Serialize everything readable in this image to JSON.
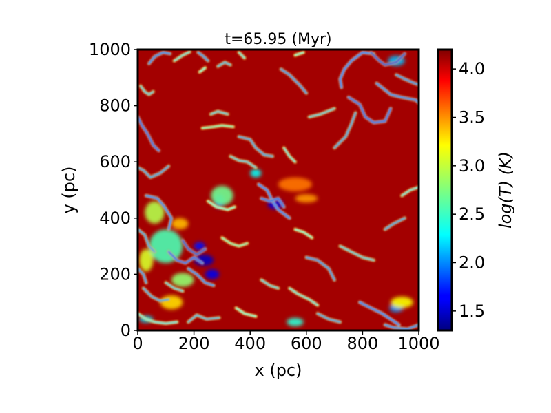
{
  "chart_data": {
    "type": "heatmap",
    "title": "t=65.95 (Myr)",
    "xlabel": "x (pc)",
    "ylabel": "y (pc)",
    "xlim": [
      0,
      1000
    ],
    "ylim": [
      0,
      1000
    ],
    "xticks": [
      0,
      200,
      400,
      600,
      800,
      1000
    ],
    "yticks": [
      0,
      200,
      400,
      600,
      800,
      1000
    ],
    "colorbar": {
      "label": "log(T) (K)",
      "range": [
        1.3,
        4.2
      ],
      "ticks": [
        1.5,
        2.0,
        2.5,
        3.0,
        3.5,
        4.0
      ],
      "colormap": "jet"
    },
    "background_value": 4.1,
    "filaments": [
      {
        "value": 1.6,
        "points": [
          [
            0,
            760
          ],
          [
            15,
            730
          ],
          [
            35,
            700
          ],
          [
            55,
            660
          ],
          [
            75,
            640
          ]
        ]
      },
      {
        "value": 2.2,
        "points": [
          [
            10,
            870
          ],
          [
            25,
            850
          ],
          [
            40,
            840
          ],
          [
            55,
            850
          ]
        ]
      },
      {
        "value": 2.0,
        "points": [
          [
            0,
            580
          ],
          [
            20,
            570
          ],
          [
            45,
            545
          ],
          [
            80,
            560
          ],
          [
            110,
            585
          ]
        ]
      },
      {
        "value": 1.8,
        "points": [
          [
            40,
            950
          ],
          [
            60,
            975
          ],
          [
            90,
            990
          ],
          [
            115,
            985
          ]
        ]
      },
      {
        "value": 2.3,
        "points": [
          [
            130,
            960
          ],
          [
            160,
            980
          ],
          [
            185,
            992
          ]
        ]
      },
      {
        "value": 1.9,
        "points": [
          [
            215,
            990
          ],
          [
            235,
            975
          ],
          [
            250,
            960
          ]
        ]
      },
      {
        "value": 2.4,
        "points": [
          [
            220,
            920
          ],
          [
            240,
            935
          ]
        ]
      },
      {
        "value": 2.1,
        "points": [
          [
            285,
            940
          ],
          [
            310,
            955
          ],
          [
            330,
            945
          ]
        ]
      },
      {
        "value": 2.3,
        "points": [
          [
            360,
            990
          ],
          [
            380,
            970
          ]
        ]
      },
      {
        "value": 1.9,
        "points": [
          [
            510,
            930
          ],
          [
            540,
            910
          ],
          [
            575,
            875
          ],
          [
            600,
            845
          ]
        ]
      },
      {
        "value": 2.4,
        "points": [
          [
            560,
            980
          ],
          [
            590,
            990
          ]
        ]
      },
      {
        "value": 1.7,
        "points": [
          [
            725,
            865
          ],
          [
            720,
            895
          ],
          [
            735,
            930
          ],
          [
            760,
            960
          ],
          [
            800,
            990
          ],
          [
            840,
            985
          ]
        ]
      },
      {
        "value": 1.5,
        "points": [
          [
            830,
            990
          ],
          [
            860,
            960
          ],
          [
            880,
            945
          ],
          [
            920,
            955
          ],
          [
            950,
            985
          ]
        ]
      },
      {
        "value": 1.8,
        "points": [
          [
            850,
            880
          ],
          [
            875,
            860
          ],
          [
            900,
            840
          ],
          [
            940,
            830
          ],
          [
            990,
            820
          ],
          [
            1000,
            810
          ]
        ]
      },
      {
        "value": 1.6,
        "points": [
          [
            750,
            830
          ],
          [
            790,
            805
          ],
          [
            810,
            760
          ],
          [
            840,
            740
          ],
          [
            880,
            745
          ],
          [
            900,
            790
          ]
        ]
      },
      {
        "value": 1.9,
        "points": [
          [
            920,
            910
          ],
          [
            950,
            895
          ],
          [
            985,
            880
          ],
          [
            1000,
            875
          ]
        ]
      },
      {
        "value": 2.0,
        "points": [
          [
            700,
            650
          ],
          [
            740,
            690
          ],
          [
            760,
            735
          ],
          [
            775,
            775
          ]
        ]
      },
      {
        "value": 2.2,
        "points": [
          [
            610,
            760
          ],
          [
            650,
            770
          ],
          [
            700,
            790
          ]
        ]
      },
      {
        "value": 2.5,
        "points": [
          [
            230,
            720
          ],
          [
            270,
            725
          ],
          [
            300,
            730
          ],
          [
            340,
            725
          ]
        ]
      },
      {
        "value": 2.2,
        "points": [
          [
            260,
            770
          ],
          [
            285,
            780
          ],
          [
            320,
            770
          ]
        ]
      },
      {
        "value": 2.0,
        "points": [
          [
            360,
            690
          ],
          [
            400,
            680
          ],
          [
            420,
            650
          ],
          [
            450,
            625
          ],
          [
            480,
            620
          ]
        ]
      },
      {
        "value": 2.3,
        "points": [
          [
            520,
            650
          ],
          [
            540,
            620
          ],
          [
            560,
            600
          ]
        ]
      },
      {
        "value": 1.7,
        "points": [
          [
            430,
            520
          ],
          [
            460,
            500
          ],
          [
            480,
            460
          ],
          [
            500,
            430
          ],
          [
            540,
            400
          ]
        ]
      },
      {
        "value": 1.6,
        "points": [
          [
            440,
            470
          ],
          [
            470,
            460
          ],
          [
            500,
            470
          ],
          [
            520,
            440
          ]
        ]
      },
      {
        "value": 2.2,
        "points": [
          [
            330,
            620
          ],
          [
            360,
            605
          ],
          [
            390,
            600
          ],
          [
            420,
            580
          ]
        ]
      },
      {
        "value": 2.4,
        "points": [
          [
            250,
            460
          ],
          [
            280,
            440
          ],
          [
            320,
            430
          ],
          [
            345,
            440
          ]
        ]
      },
      {
        "value": 1.8,
        "points": [
          [
            30,
            480
          ],
          [
            70,
            470
          ],
          [
            95,
            440
          ],
          [
            120,
            400
          ],
          [
            110,
            360
          ]
        ]
      },
      {
        "value": 2.0,
        "points": [
          [
            0,
            360
          ],
          [
            25,
            340
          ],
          [
            40,
            300
          ],
          [
            60,
            280
          ]
        ]
      },
      {
        "value": 1.6,
        "points": [
          [
            110,
            280
          ],
          [
            140,
            250
          ],
          [
            170,
            240
          ],
          [
            200,
            260
          ],
          [
            230,
            240
          ]
        ]
      },
      {
        "value": 1.5,
        "points": [
          [
            160,
            320
          ],
          [
            180,
            290
          ],
          [
            210,
            270
          ],
          [
            240,
            290
          ]
        ]
      },
      {
        "value": 1.8,
        "points": [
          [
            180,
            220
          ],
          [
            210,
            200
          ],
          [
            240,
            170
          ],
          [
            270,
            160
          ]
        ]
      },
      {
        "value": 2.0,
        "points": [
          [
            20,
            150
          ],
          [
            50,
            120
          ],
          [
            80,
            105
          ],
          [
            110,
            110
          ]
        ]
      },
      {
        "value": 2.3,
        "points": [
          [
            0,
            60
          ],
          [
            30,
            40
          ],
          [
            60,
            30
          ],
          [
            100,
            25
          ],
          [
            140,
            30
          ]
        ]
      },
      {
        "value": 2.1,
        "points": [
          [
            180,
            30
          ],
          [
            210,
            55
          ],
          [
            245,
            40
          ],
          [
            290,
            45
          ]
        ]
      },
      {
        "value": 2.4,
        "points": [
          [
            350,
            80
          ],
          [
            380,
            60
          ],
          [
            420,
            50
          ]
        ]
      },
      {
        "value": 1.9,
        "points": [
          [
            600,
            260
          ],
          [
            640,
            250
          ],
          [
            680,
            220
          ],
          [
            700,
            180
          ]
        ]
      },
      {
        "value": 2.2,
        "points": [
          [
            720,
            300
          ],
          [
            760,
            280
          ],
          [
            800,
            260
          ],
          [
            840,
            250
          ]
        ]
      },
      {
        "value": 1.7,
        "points": [
          [
            790,
            100
          ],
          [
            830,
            80
          ],
          [
            870,
            60
          ],
          [
            900,
            40
          ],
          [
            930,
            20
          ]
        ]
      },
      {
        "value": 1.8,
        "points": [
          [
            880,
            20
          ],
          [
            910,
            10
          ],
          [
            960,
            5
          ],
          [
            1000,
            20
          ]
        ]
      },
      {
        "value": 2.3,
        "points": [
          [
            540,
            150
          ],
          [
            570,
            130
          ],
          [
            610,
            110
          ],
          [
            640,
            90
          ]
        ]
      },
      {
        "value": 2.0,
        "points": [
          [
            640,
            60
          ],
          [
            680,
            40
          ],
          [
            720,
            30
          ]
        ]
      },
      {
        "value": 2.5,
        "points": [
          [
            300,
            330
          ],
          [
            330,
            310
          ],
          [
            360,
            300
          ],
          [
            390,
            310
          ]
        ]
      },
      {
        "value": 2.2,
        "points": [
          [
            440,
            180
          ],
          [
            470,
            160
          ],
          [
            500,
            150
          ]
        ]
      },
      {
        "value": 2.4,
        "points": [
          [
            560,
            360
          ],
          [
            590,
            350
          ],
          [
            620,
            330
          ]
        ]
      },
      {
        "value": 2.0,
        "points": [
          [
            880,
            360
          ],
          [
            910,
            380
          ],
          [
            950,
            400
          ]
        ]
      },
      {
        "value": 2.3,
        "points": [
          [
            940,
            480
          ],
          [
            970,
            500
          ],
          [
            1000,
            510
          ]
        ]
      },
      {
        "value": 1.9,
        "points": [
          [
            0,
            220
          ],
          [
            20,
            200
          ],
          [
            30,
            170
          ]
        ]
      },
      {
        "value": 2.2,
        "points": [
          [
            100,
            170
          ],
          [
            130,
            150
          ],
          [
            160,
            140
          ]
        ]
      }
    ],
    "blobs": [
      {
        "value": 1.5,
        "x": 235,
        "y": 250,
        "rx": 35,
        "ry": 20
      },
      {
        "value": 1.6,
        "x": 265,
        "y": 200,
        "rx": 25,
        "ry": 18
      },
      {
        "value": 1.7,
        "x": 220,
        "y": 300,
        "rx": 20,
        "ry": 15
      },
      {
        "value": 1.6,
        "x": 490,
        "y": 450,
        "rx": 28,
        "ry": 18
      },
      {
        "value": 1.8,
        "x": 290,
        "y": 460,
        "rx": 20,
        "ry": 25
      },
      {
        "value": 2.6,
        "x": 100,
        "y": 300,
        "rx": 60,
        "ry": 60
      },
      {
        "value": 2.9,
        "x": 60,
        "y": 420,
        "rx": 35,
        "ry": 40
      },
      {
        "value": 2.8,
        "x": 160,
        "y": 180,
        "rx": 40,
        "ry": 25
      },
      {
        "value": 3.2,
        "x": 120,
        "y": 100,
        "rx": 40,
        "ry": 25
      },
      {
        "value": 3.0,
        "x": 30,
        "y": 250,
        "rx": 25,
        "ry": 40
      },
      {
        "value": 2.4,
        "x": 420,
        "y": 560,
        "rx": 20,
        "ry": 15
      },
      {
        "value": 2.7,
        "x": 300,
        "y": 480,
        "rx": 40,
        "ry": 35
      },
      {
        "value": 3.3,
        "x": 150,
        "y": 380,
        "rx": 30,
        "ry": 20
      },
      {
        "value": 3.5,
        "x": 560,
        "y": 520,
        "rx": 60,
        "ry": 25
      },
      {
        "value": 3.4,
        "x": 600,
        "y": 470,
        "rx": 40,
        "ry": 15
      },
      {
        "value": 2.2,
        "x": 920,
        "y": 960,
        "rx": 30,
        "ry": 18
      },
      {
        "value": 2.5,
        "x": 560,
        "y": 30,
        "rx": 30,
        "ry": 15
      },
      {
        "value": 2.1,
        "x": 920,
        "y": 80,
        "rx": 25,
        "ry": 15
      },
      {
        "value": 3.1,
        "x": 940,
        "y": 100,
        "rx": 40,
        "ry": 20
      },
      {
        "value": 2.3,
        "x": 30,
        "y": 40,
        "rx": 25,
        "ry": 12
      }
    ]
  }
}
